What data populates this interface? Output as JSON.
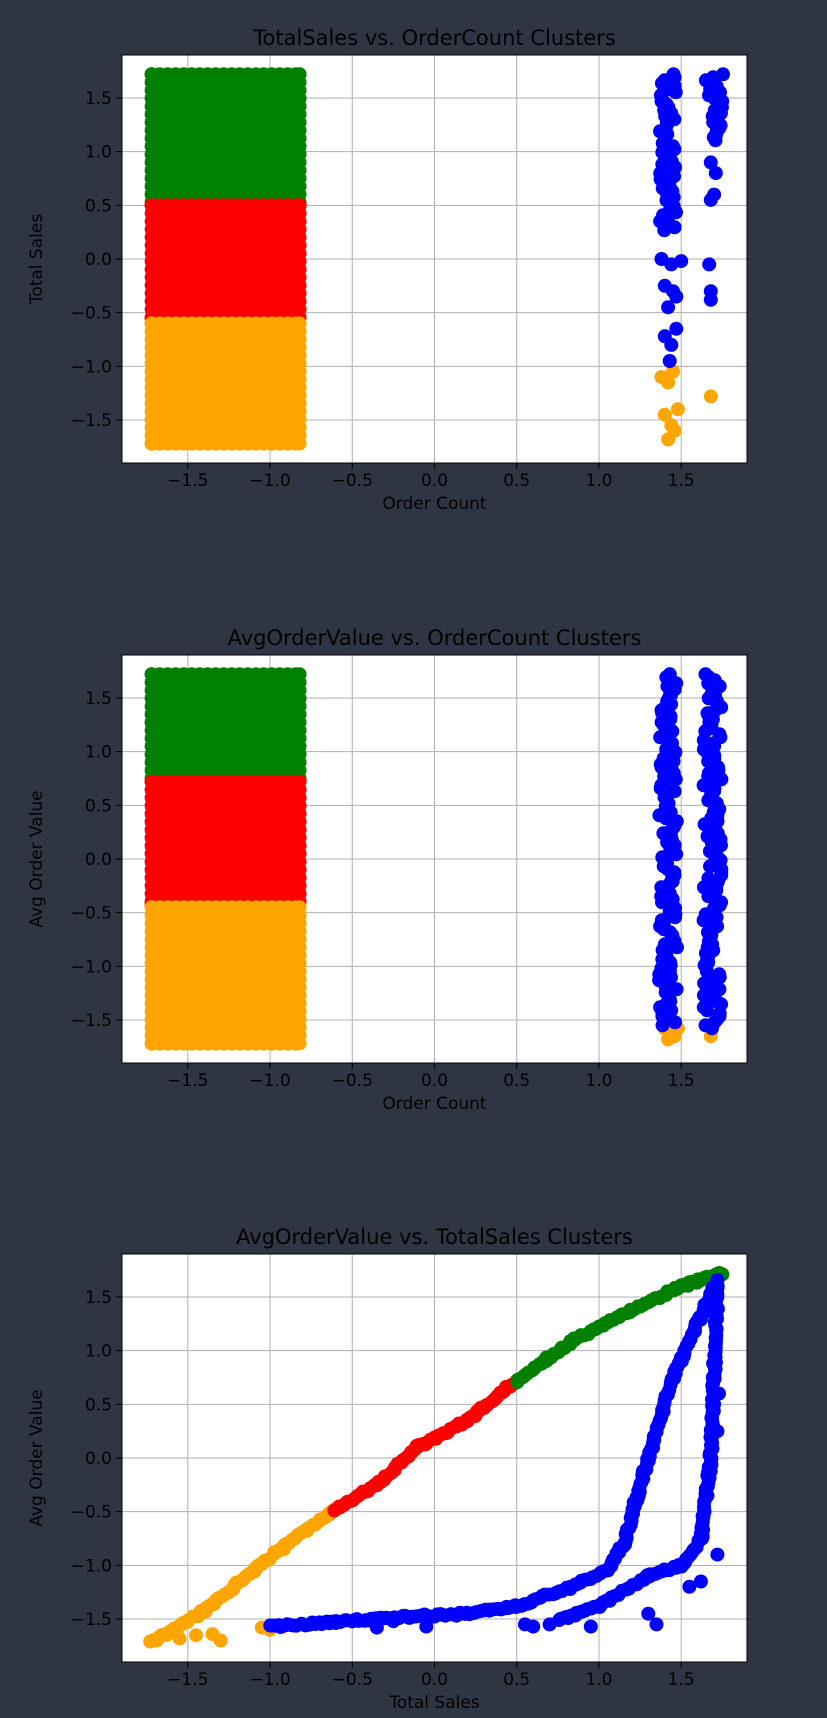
{
  "chart_data": [
    {
      "type": "scatter",
      "title": "TotalSales vs. OrderCount Clusters",
      "xlabel": "Order Count",
      "ylabel": "Total Sales",
      "xlim": [
        -1.9,
        1.9
      ],
      "ylim": [
        -1.9,
        1.9
      ],
      "xticks": [
        -1.5,
        -1.0,
        -0.5,
        0.0,
        0.5,
        1.0,
        1.5
      ],
      "yticks": [
        -1.5,
        -1.0,
        -0.5,
        0.0,
        0.5,
        1.0,
        1.5
      ],
      "grid": true,
      "clusters": [
        {
          "color": "#008000",
          "regions": [
            {
              "x": [
                -1.72,
                -0.82
              ],
              "y": [
                0.5,
                1.72
              ]
            }
          ]
        },
        {
          "color": "#ff0000",
          "regions": [
            {
              "x": [
                -1.72,
                -0.82
              ],
              "y": [
                -0.55,
                0.5
              ]
            }
          ]
        },
        {
          "color": "#ffa500",
          "regions": [
            {
              "x": [
                -1.72,
                -0.82
              ],
              "y": [
                -1.72,
                -0.6
              ]
            }
          ],
          "points": [
            [
              1.38,
              -1.1
            ],
            [
              1.42,
              -1.15
            ],
            [
              1.45,
              -1.05
            ],
            [
              1.4,
              -1.45
            ],
            [
              1.44,
              -1.55
            ],
            [
              1.48,
              -1.4
            ],
            [
              1.42,
              -1.68
            ],
            [
              1.46,
              -1.6
            ],
            [
              1.68,
              -1.28
            ]
          ]
        },
        {
          "color": "#0000ff",
          "lines": [
            {
              "x": 1.42,
              "y": [
                0.25,
                1.72
              ]
            },
            {
              "x": 1.7,
              "y": [
                1.1,
                1.72
              ]
            }
          ],
          "points": [
            [
              1.38,
              0.0
            ],
            [
              1.44,
              -0.05
            ],
            [
              1.5,
              -0.02
            ],
            [
              1.4,
              -0.25
            ],
            [
              1.45,
              -0.3
            ],
            [
              1.42,
              -0.45
            ],
            [
              1.47,
              -0.35
            ],
            [
              1.4,
              -0.72
            ],
            [
              1.44,
              -0.8
            ],
            [
              1.47,
              -0.65
            ],
            [
              1.43,
              -0.95
            ],
            [
              1.68,
              0.9
            ],
            [
              1.7,
              0.6
            ],
            [
              1.68,
              0.55
            ],
            [
              1.67,
              -0.05
            ],
            [
              1.68,
              -0.3
            ],
            [
              1.68,
              -0.38
            ],
            [
              1.71,
              0.8
            ]
          ]
        }
      ]
    },
    {
      "type": "scatter",
      "title": "AvgOrderValue vs. OrderCount Clusters",
      "xlabel": "Order Count",
      "ylabel": "Avg Order Value",
      "xlim": [
        -1.9,
        1.9
      ],
      "ylim": [
        -1.9,
        1.9
      ],
      "xticks": [
        -1.5,
        -1.0,
        -0.5,
        0.0,
        0.5,
        1.0,
        1.5
      ],
      "yticks": [
        -1.5,
        -1.0,
        -0.5,
        0.0,
        0.5,
        1.0,
        1.5
      ],
      "grid": true,
      "clusters": [
        {
          "color": "#008000",
          "regions": [
            {
              "x": [
                -1.72,
                -0.82
              ],
              "y": [
                0.72,
                1.72
              ]
            }
          ]
        },
        {
          "color": "#ff0000",
          "regions": [
            {
              "x": [
                -1.72,
                -0.82
              ],
              "y": [
                -0.42,
                0.72
              ]
            }
          ]
        },
        {
          "color": "#ffa500",
          "regions": [
            {
              "x": [
                -1.72,
                -0.82
              ],
              "y": [
                -1.72,
                -0.45
              ]
            }
          ],
          "points": [
            [
              1.4,
              -1.58
            ],
            [
              1.44,
              -1.62
            ],
            [
              1.48,
              -1.58
            ],
            [
              1.42,
              -1.68
            ],
            [
              1.46,
              -1.65
            ],
            [
              1.68,
              -1.65
            ]
          ]
        },
        {
          "color": "#0000ff",
          "lines": [
            {
              "x": 1.42,
              "y": [
                -1.55,
                1.72
              ]
            },
            {
              "x": 1.69,
              "y": [
                -1.58,
                1.72
              ]
            }
          ],
          "points": []
        }
      ]
    },
    {
      "type": "scatter",
      "title": "AvgOrderValue vs. TotalSales Clusters",
      "xlabel": "Total Sales",
      "ylabel": "Avg Order Value",
      "xlim": [
        -1.9,
        1.9
      ],
      "ylim": [
        -1.9,
        1.9
      ],
      "xticks": [
        -1.5,
        -1.0,
        -0.5,
        0.0,
        0.5,
        1.0,
        1.5
      ],
      "yticks": [
        -1.5,
        -1.0,
        -0.5,
        0.0,
        0.5,
        1.0,
        1.5
      ],
      "grid": true,
      "clusters": [
        {
          "color": "#ffa500",
          "curves": [
            [
              [
                -1.72,
                -1.72
              ],
              [
                -1.4,
                -1.42
              ],
              [
                -1.1,
                -1.05
              ],
              [
                -0.85,
                -0.75
              ],
              [
                -0.6,
                -0.48
              ]
            ]
          ],
          "points": [
            [
              -1.55,
              -1.68
            ],
            [
              -1.45,
              -1.65
            ],
            [
              -1.35,
              -1.64
            ],
            [
              -1.3,
              -1.7
            ],
            [
              -1.05,
              -1.58
            ],
            [
              -1.0,
              -1.6
            ]
          ]
        },
        {
          "color": "#ff0000",
          "curves": [
            [
              [
                -0.6,
                -0.48
              ],
              [
                -0.35,
                -0.25
              ],
              [
                -0.1,
                0.1
              ],
              [
                0.2,
                0.35
              ],
              [
                0.5,
                0.72
              ]
            ]
          ]
        },
        {
          "color": "#008000",
          "curves": [
            [
              [
                0.5,
                0.72
              ],
              [
                0.85,
                1.1
              ],
              [
                1.2,
                1.38
              ],
              [
                1.5,
                1.6
              ],
              [
                1.75,
                1.72
              ]
            ]
          ]
        },
        {
          "color": "#0000ff",
          "curves": [
            [
              [
                -1.0,
                -1.57
              ],
              [
                -0.6,
                -1.53
              ],
              [
                -0.2,
                -1.48
              ],
              [
                0.2,
                -1.45
              ],
              [
                0.5,
                -1.38
              ],
              [
                0.8,
                -1.22
              ],
              [
                1.05,
                -1.05
              ],
              [
                1.15,
                -0.8
              ],
              [
                1.3,
                0.0
              ],
              [
                1.45,
                0.75
              ],
              [
                1.72,
                1.65
              ]
            ],
            [
              [
                0.75,
                -1.52
              ],
              [
                1.0,
                -1.38
              ],
              [
                1.3,
                -1.1
              ],
              [
                1.5,
                -1.0
              ],
              [
                1.62,
                -0.75
              ],
              [
                1.68,
                0.0
              ],
              [
                1.72,
                1.6
              ]
            ]
          ],
          "points": [
            [
              -0.35,
              -1.58
            ],
            [
              -0.25,
              -1.52
            ],
            [
              -0.05,
              -1.57
            ],
            [
              0.55,
              -1.55
            ],
            [
              0.6,
              -1.57
            ],
            [
              0.7,
              -1.55
            ],
            [
              0.95,
              -1.57
            ],
            [
              1.3,
              -1.45
            ],
            [
              1.35,
              -1.55
            ],
            [
              1.55,
              -1.2
            ],
            [
              1.62,
              -1.15
            ],
            [
              1.68,
              0.2
            ],
            [
              1.7,
              0.5
            ],
            [
              1.66,
              -0.35
            ],
            [
              1.72,
              -0.9
            ],
            [
              1.72,
              0.25
            ],
            [
              1.73,
              0.6
            ]
          ]
        }
      ]
    }
  ]
}
